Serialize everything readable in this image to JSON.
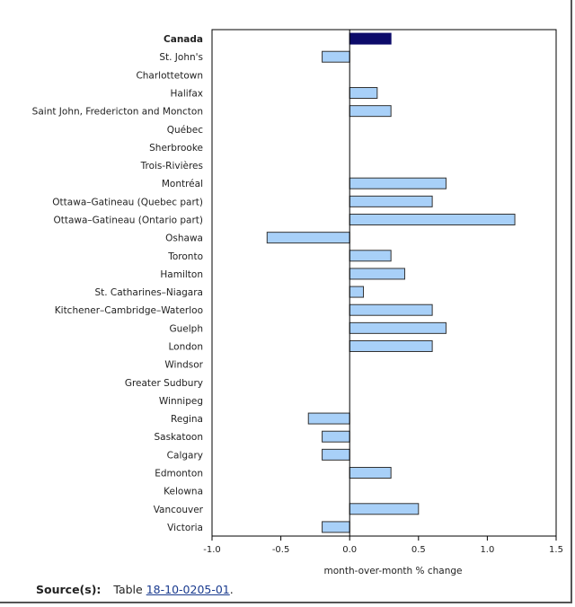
{
  "chart_data": {
    "type": "bar",
    "orientation": "horizontal",
    "categories": [
      "Canada",
      "St. John's",
      "Charlottetown",
      "Halifax",
      "Saint John, Fredericton and Moncton",
      "Québec",
      "Sherbrooke",
      "Trois-Rivières",
      "Montréal",
      "Ottawa–Gatineau (Quebec part)",
      "Ottawa–Gatineau (Ontario part)",
      "Oshawa",
      "Toronto",
      "Hamilton",
      "St. Catharines–Niagara",
      "Kitchener–Cambridge–Waterloo",
      "Guelph",
      "London",
      "Windsor",
      "Greater Sudbury",
      "Winnipeg",
      "Regina",
      "Saskatoon",
      "Calgary",
      "Edmonton",
      "Kelowna",
      "Vancouver",
      "Victoria"
    ],
    "values": [
      0.3,
      -0.2,
      0,
      0.2,
      0.3,
      0,
      0,
      0,
      0.7,
      0.6,
      1.2,
      -0.6,
      0.3,
      0.4,
      0.1,
      0.6,
      0.7,
      0.6,
      0,
      0,
      0,
      -0.3,
      -0.2,
      -0.2,
      0.3,
      0,
      0.5,
      -0.2
    ],
    "highlight_category": "Canada",
    "xlabel": "month-over-month % change",
    "ylabel": "",
    "title": "",
    "xlim": [
      -1.0,
      1.5
    ],
    "x_ticks": [
      "-1.0",
      "-0.5",
      "0.0",
      "0.5",
      "1.0",
      "1.5"
    ],
    "x_tick_values": [
      -1.0,
      -0.5,
      0.0,
      0.5,
      1.0,
      1.5
    ],
    "grid": false,
    "colors": {
      "highlight": "#0c0a6a",
      "bar": "#a8d0f8",
      "bar_border": "#333333",
      "axis": "#000000"
    }
  },
  "source": {
    "label": "Source(s):",
    "prefix": "Table",
    "link_text": "18-10-0205-01",
    "suffix": "."
  }
}
